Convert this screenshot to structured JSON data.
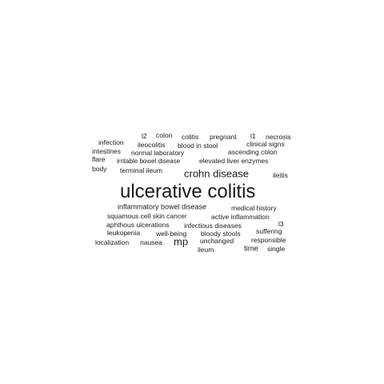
{
  "words": [
    {
      "text": "ulcerative colitis"
    },
    {
      "text": "crohn disease"
    },
    {
      "text": "mp"
    },
    {
      "text": "inflammatory bowel disease"
    },
    {
      "text": "time"
    },
    {
      "text": "l2"
    },
    {
      "text": "colon"
    },
    {
      "text": "colitis"
    },
    {
      "text": "pregnant"
    },
    {
      "text": "l1"
    },
    {
      "text": "necrosis"
    },
    {
      "text": "infection"
    },
    {
      "text": "ileocolitis"
    },
    {
      "text": "blood in stool"
    },
    {
      "text": "clinical signs"
    },
    {
      "text": "intestines"
    },
    {
      "text": "normal laboratory"
    },
    {
      "text": "ascending colon"
    },
    {
      "text": "flare"
    },
    {
      "text": "irritable bowel disease"
    },
    {
      "text": "elevated liver enzymes"
    },
    {
      "text": "body"
    },
    {
      "text": "terminal ileum"
    },
    {
      "text": "ileitis"
    },
    {
      "text": "medical history"
    },
    {
      "text": "squamous cell skin cancer"
    },
    {
      "text": "active inflammation"
    },
    {
      "text": "aphthous ulcerations"
    },
    {
      "text": "infectious diseases"
    },
    {
      "text": "l3"
    },
    {
      "text": "leukopenia"
    },
    {
      "text": "well-being"
    },
    {
      "text": "bloody stools"
    },
    {
      "text": "suffering"
    },
    {
      "text": "localization"
    },
    {
      "text": "nausea"
    },
    {
      "text": "unchanged"
    },
    {
      "text": "responsible"
    },
    {
      "text": "ileum"
    },
    {
      "text": "single"
    }
  ]
}
